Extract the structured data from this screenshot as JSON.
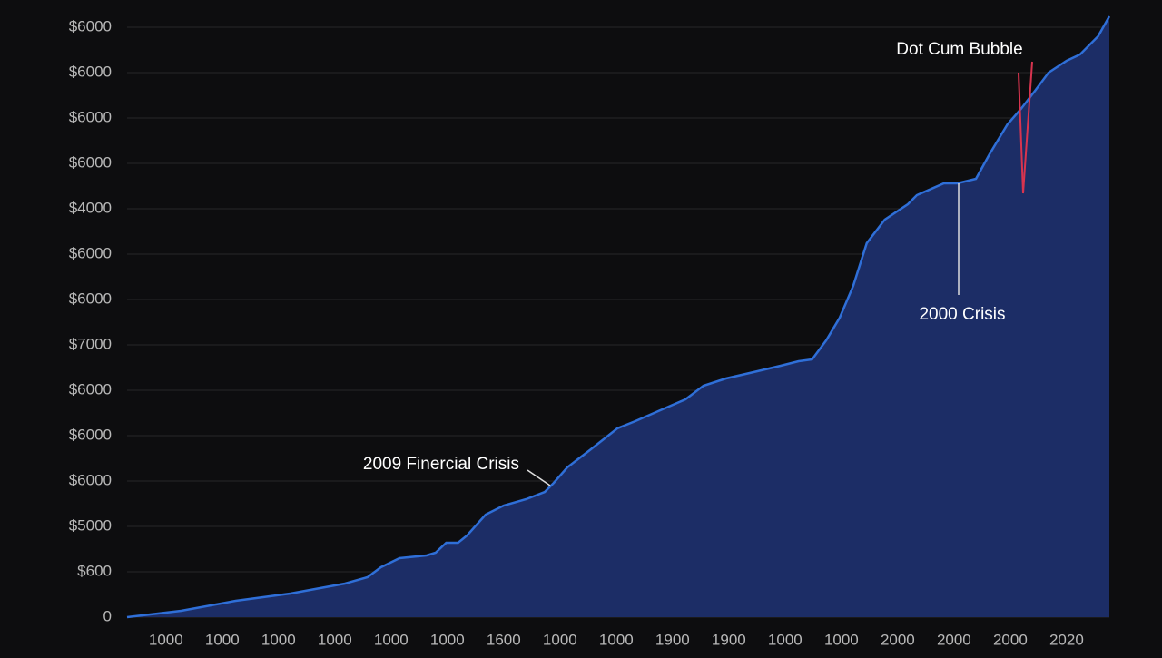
{
  "chart_data": {
    "type": "area",
    "x": [
      -0.69,
      0.27,
      1.24,
      2.21,
      3.18,
      3.58,
      3.82,
      4.15,
      4.63,
      4.79,
      4.98,
      5.19,
      5.35,
      5.68,
      6.0,
      6.4,
      6.73,
      6.89,
      7.13,
      7.53,
      8.02,
      8.34,
      8.82,
      9.23,
      9.55,
      9.95,
      10.44,
      10.92,
      11.24,
      11.48,
      11.73,
      11.97,
      12.21,
      12.45,
      12.77,
      13.18,
      13.34,
      13.82,
      14.06,
      14.39,
      14.63,
      14.95,
      15.19,
      15.44,
      15.68,
      16.0,
      16.24,
      16.56,
      16.76
    ],
    "values": [
      0,
      0.14,
      0.36,
      0.52,
      0.74,
      0.88,
      1.1,
      1.3,
      1.36,
      1.42,
      1.64,
      1.64,
      1.8,
      2.26,
      2.46,
      2.6,
      2.76,
      2.96,
      3.3,
      3.68,
      4.16,
      4.32,
      4.58,
      4.8,
      5.1,
      5.26,
      5.4,
      5.54,
      5.64,
      5.68,
      6.1,
      6.6,
      7.3,
      8.24,
      8.76,
      9.1,
      9.3,
      9.56,
      9.56,
      9.66,
      10.2,
      10.86,
      11.2,
      11.6,
      12.0,
      12.26,
      12.4,
      12.8,
      13.24
    ],
    "color": "#2f6fd8",
    "fill": "#1c2d66",
    "xlim": [
      -0.69,
      16.76
    ],
    "ylim": [
      0,
      13.3
    ],
    "yticks": [
      0,
      {
        "value": 1,
        "label": "$600"
      },
      {
        "value": 2,
        "label": "$5000"
      },
      {
        "value": 3,
        "label": "$6000"
      },
      {
        "value": 4,
        "label": "$6000"
      },
      {
        "value": 5,
        "label": "$6000"
      },
      {
        "value": 6,
        "label": "$7000"
      },
      {
        "value": 7,
        "label": "$6000"
      },
      {
        "value": 8,
        "label": "$6000"
      },
      {
        "value": 9,
        "label": "$4000"
      },
      {
        "value": 10,
        "label": "$6000"
      },
      {
        "value": 11,
        "label": "$6000"
      },
      {
        "value": 12,
        "label": "$6000"
      },
      {
        "value": 13,
        "label": "$6000"
      }
    ],
    "xticks": [
      {
        "value": 0,
        "label": "1000"
      },
      {
        "value": 1,
        "label": "1000"
      },
      {
        "value": 2,
        "label": "1000"
      },
      {
        "value": 3,
        "label": "1000"
      },
      {
        "value": 4,
        "label": "1000"
      },
      {
        "value": 5,
        "label": "1000"
      },
      {
        "value": 6,
        "label": "1600"
      },
      {
        "value": 7,
        "label": "1000"
      },
      {
        "value": 8,
        "label": "1000"
      },
      {
        "value": 9,
        "label": "1900"
      },
      {
        "value": 10,
        "label": "1900"
      },
      {
        "value": 11,
        "label": "1000"
      },
      {
        "value": 12,
        "label": "1000"
      },
      {
        "value": 13,
        "label": "2000"
      },
      {
        "value": 14,
        "label": "2000"
      },
      {
        "value": 15,
        "label": "2000"
      },
      {
        "value": 16,
        "label": "2020"
      }
    ],
    "grid": true,
    "annotations": [
      "Dot Cum Bubble",
      "2000 Crisis",
      "2009 Finercial Crisis"
    ]
  }
}
